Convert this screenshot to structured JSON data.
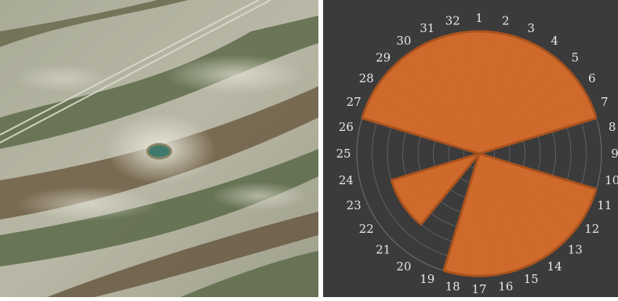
{
  "chart_data": {
    "type": "polar-bar",
    "sectors": [
      "1",
      "2",
      "3",
      "4",
      "5",
      "6",
      "7",
      "8",
      "9",
      "10",
      "11",
      "12",
      "13",
      "14",
      "15",
      "16",
      "17",
      "18",
      "19",
      "20",
      "21",
      "22",
      "23",
      "24",
      "25",
      "26",
      "27",
      "28",
      "29",
      "30",
      "31",
      "32"
    ],
    "values": [
      1,
      1,
      1,
      1,
      1,
      1,
      1,
      0,
      0,
      0,
      1,
      1,
      1,
      1,
      1,
      1,
      1,
      1,
      0,
      0,
      0.75,
      0.75,
      0.75,
      0,
      0,
      0,
      1,
      1,
      1,
      1,
      1,
      1
    ],
    "rmax": 1,
    "grid": true,
    "colors": {
      "fill": "#cf6a2c",
      "edge": "#a9521e",
      "background": "#3b3b3b",
      "grid": "#6a6a6a",
      "labels": "#e8e8e8"
    }
  },
  "image": {
    "left_panel": "satellite-aerial-photo",
    "colors": {
      "sand": "#c9c7b4",
      "veg": "#5c6a4a",
      "soil": "#7a6248",
      "water": "#3f7a6c"
    }
  }
}
